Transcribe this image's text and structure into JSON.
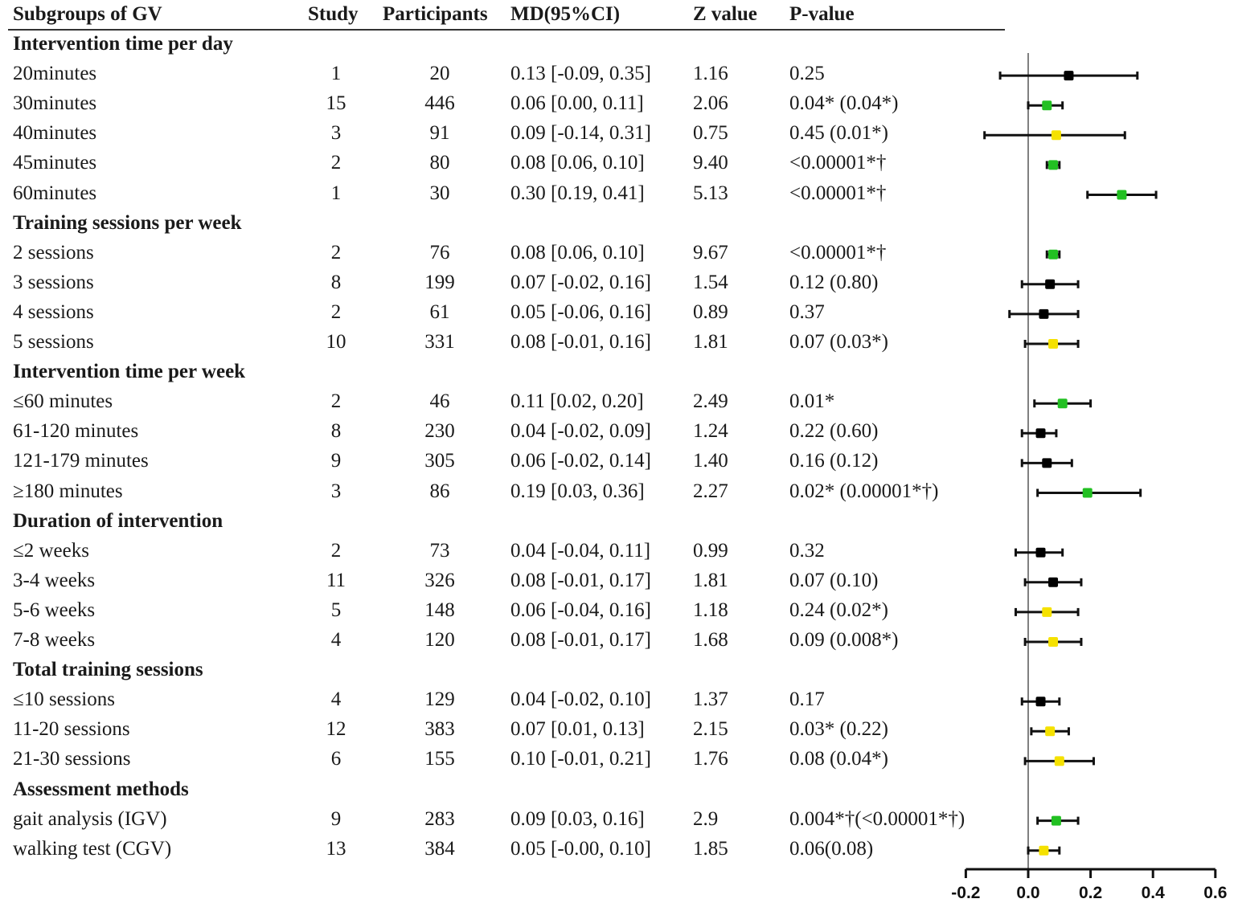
{
  "headers": {
    "subgroup": "Subgroups of GV",
    "study": "Study",
    "participants": "Participants",
    "md": "MD(95%CI)",
    "z": "Z value",
    "p": "P-value"
  },
  "colors": {
    "black": "#000000",
    "green": "#22c022",
    "yellow": "#f5e100",
    "axis": "#808080"
  },
  "groups": [
    {
      "title": "Intervention time per day",
      "rows": [
        {
          "label": "20minutes",
          "study": "1",
          "n": "20",
          "md": "0.13 [-0.09, 0.35]",
          "z": "1.16",
          "p": "0.25",
          "est": 0.13,
          "lo": -0.09,
          "hi": 0.35,
          "color": "black"
        },
        {
          "label": "30minutes",
          "study": "15",
          "n": "446",
          "md": "0.06 [0.00, 0.11]",
          "z": "2.06",
          "p": "0.04* (0.04*)",
          "est": 0.06,
          "lo": 0.0,
          "hi": 0.11,
          "color": "green"
        },
        {
          "label": "40minutes",
          "study": "3",
          "n": "91",
          "md": "0.09 [-0.14, 0.31]",
          "z": "0.75",
          "p": "0.45 (0.01*)",
          "est": 0.09,
          "lo": -0.14,
          "hi": 0.31,
          "color": "yellow"
        },
        {
          "label": "45minutes",
          "study": "2",
          "n": "80",
          "md": "0.08 [0.06, 0.10]",
          "z": "9.40",
          "p": "<0.00001*†",
          "est": 0.08,
          "lo": 0.06,
          "hi": 0.1,
          "color": "green"
        },
        {
          "label": "60minutes",
          "study": "1",
          "n": "30",
          "md": "0.30 [0.19, 0.41]",
          "z": "5.13",
          "p": "<0.00001*†",
          "est": 0.3,
          "lo": 0.19,
          "hi": 0.41,
          "color": "green"
        }
      ]
    },
    {
      "title": "Training sessions per week",
      "rows": [
        {
          "label": "2 sessions",
          "study": "2",
          "n": "76",
          "md": "0.08 [0.06, 0.10]",
          "z": "9.67",
          "p": "<0.00001*†",
          "est": 0.08,
          "lo": 0.06,
          "hi": 0.1,
          "color": "green"
        },
        {
          "label": "3 sessions",
          "study": "8",
          "n": "199",
          "md": "0.07 [-0.02, 0.16]",
          "z": "1.54",
          "p": "0.12 (0.80)",
          "est": 0.07,
          "lo": -0.02,
          "hi": 0.16,
          "color": "black"
        },
        {
          "label": "4 sessions",
          "study": "2",
          "n": "61",
          "md": "0.05 [-0.06, 0.16]",
          "z": "0.89",
          "p": "0.37",
          "est": 0.05,
          "lo": -0.06,
          "hi": 0.16,
          "color": "black"
        },
        {
          "label": "5 sessions",
          "study": "10",
          "n": "331",
          "md": "0.08 [-0.01, 0.16]",
          "z": "1.81",
          "p": "0.07 (0.03*)",
          "est": 0.08,
          "lo": -0.01,
          "hi": 0.16,
          "color": "yellow"
        }
      ]
    },
    {
      "title": "Intervention time per week",
      "rows": [
        {
          "label": "≤60 minutes",
          "study": "2",
          "n": "46",
          "md": "0.11 [0.02, 0.20]",
          "z": "2.49",
          "p": "0.01*",
          "est": 0.11,
          "lo": 0.02,
          "hi": 0.2,
          "color": "green"
        },
        {
          "label": "61-120 minutes",
          "study": "8",
          "n": "230",
          "md": "0.04 [-0.02, 0.09]",
          "z": "1.24",
          "p": "0.22 (0.60)",
          "est": 0.04,
          "lo": -0.02,
          "hi": 0.09,
          "color": "black"
        },
        {
          "label": "121-179 minutes",
          "study": "9",
          "n": "305",
          "md": "0.06 [-0.02, 0.14]",
          "z": "1.40",
          "p": "0.16 (0.12)",
          "est": 0.06,
          "lo": -0.02,
          "hi": 0.14,
          "color": "black"
        },
        {
          "label": "≥180 minutes",
          "study": "3",
          "n": "86",
          "md": "0.19 [0.03, 0.36]",
          "z": "2.27",
          "p": "0.02* (0.00001*†)",
          "est": 0.19,
          "lo": 0.03,
          "hi": 0.36,
          "color": "green"
        }
      ]
    },
    {
      "title": "Duration of intervention",
      "rows": [
        {
          "label": "≤2 weeks",
          "study": "2",
          "n": "73",
          "md": "0.04 [-0.04, 0.11]",
          "z": "0.99",
          "p": "0.32",
          "est": 0.04,
          "lo": -0.04,
          "hi": 0.11,
          "color": "black"
        },
        {
          "label": "3-4 weeks",
          "study": "11",
          "n": "326",
          "md": "0.08 [-0.01, 0.17]",
          "z": "1.81",
          "p": "0.07 (0.10)",
          "est": 0.08,
          "lo": -0.01,
          "hi": 0.17,
          "color": "black"
        },
        {
          "label": "5-6 weeks",
          "study": "5",
          "n": "148",
          "md": "0.06 [-0.04, 0.16]",
          "z": "1.18",
          "p": "0.24 (0.02*)",
          "est": 0.06,
          "lo": -0.04,
          "hi": 0.16,
          "color": "yellow"
        },
        {
          "label": "7-8 weeks",
          "study": "4",
          "n": "120",
          "md": "0.08 [-0.01, 0.17]",
          "z": "1.68",
          "p": "0.09 (0.008*)",
          "est": 0.08,
          "lo": -0.01,
          "hi": 0.17,
          "color": "yellow"
        }
      ]
    },
    {
      "title": "Total training sessions",
      "rows": [
        {
          "label": "≤10 sessions",
          "study": "4",
          "n": "129",
          "md": "0.04 [-0.02, 0.10]",
          "z": "1.37",
          "p": "0.17",
          "est": 0.04,
          "lo": -0.02,
          "hi": 0.1,
          "color": "black"
        },
        {
          "label": "11-20 sessions",
          "study": "12",
          "n": "383",
          "md": "0.07 [0.01, 0.13]",
          "z": "2.15",
          "p": "0.03* (0.22)",
          "est": 0.07,
          "lo": 0.01,
          "hi": 0.13,
          "color": "yellow"
        },
        {
          "label": "21-30 sessions",
          "study": "6",
          "n": "155",
          "md": "0.10 [-0.01, 0.21]",
          "z": "1.76",
          "p": "0.08 (0.04*)",
          "est": 0.1,
          "lo": -0.01,
          "hi": 0.21,
          "color": "yellow"
        }
      ]
    },
    {
      "title": "Assessment methods",
      "rows": [
        {
          "label": "gait analysis (IGV)",
          "study": "9",
          "n": "283",
          "md": "0.09 [0.03, 0.16]",
          "z": "2.9",
          "p": "0.004*†(<0.00001*†)",
          "est": 0.09,
          "lo": 0.03,
          "hi": 0.16,
          "color": "green"
        },
        {
          "label": "walking test (CGV)",
          "study": "13",
          "n": "384",
          "md": "0.05 [-0.00, 0.10]",
          "z": "1.85",
          "p": "0.06(0.08)",
          "est": 0.05,
          "lo": 0.0,
          "hi": 0.1,
          "color": "yellow"
        }
      ]
    }
  ],
  "chart_data": {
    "type": "scatter",
    "subtype": "forest",
    "title": "",
    "xlabel": "",
    "ylabel": "",
    "xlim": [
      -0.2,
      0.6
    ],
    "xticks": [
      "-0.2",
      "0.0",
      "0.2",
      "0.4",
      "0.6"
    ],
    "reference_line": 0.0,
    "grid": false,
    "categories": [
      "20minutes",
      "30minutes",
      "40minutes",
      "45minutes",
      "60minutes",
      "2 sessions",
      "3 sessions",
      "4 sessions",
      "5 sessions",
      "≤60 minutes",
      "61-120 minutes",
      "121-179 minutes",
      "≥180 minutes",
      "≤2 weeks",
      "3-4 weeks",
      "5-6 weeks",
      "7-8 weeks",
      "≤10 sessions",
      "11-20 sessions",
      "21-30 sessions",
      "gait analysis (IGV)",
      "walking test (CGV)"
    ],
    "series": [
      {
        "name": "MD",
        "values": [
          0.13,
          0.06,
          0.09,
          0.08,
          0.3,
          0.08,
          0.07,
          0.05,
          0.08,
          0.11,
          0.04,
          0.06,
          0.19,
          0.04,
          0.08,
          0.06,
          0.08,
          0.04,
          0.07,
          0.1,
          0.09,
          0.05
        ]
      },
      {
        "name": "CI lower",
        "values": [
          -0.09,
          0.0,
          -0.14,
          0.06,
          0.19,
          0.06,
          -0.02,
          -0.06,
          -0.01,
          0.02,
          -0.02,
          -0.02,
          0.03,
          -0.04,
          -0.01,
          -0.04,
          -0.01,
          -0.02,
          0.01,
          -0.01,
          0.03,
          0.0
        ]
      },
      {
        "name": "CI upper",
        "values": [
          0.35,
          0.11,
          0.31,
          0.1,
          0.41,
          0.1,
          0.16,
          0.16,
          0.16,
          0.2,
          0.09,
          0.14,
          0.36,
          0.11,
          0.17,
          0.16,
          0.17,
          0.1,
          0.13,
          0.21,
          0.16,
          0.1
        ]
      }
    ],
    "marker_colors": [
      "black",
      "green",
      "yellow",
      "green",
      "green",
      "green",
      "black",
      "black",
      "yellow",
      "green",
      "black",
      "black",
      "green",
      "black",
      "black",
      "yellow",
      "yellow",
      "black",
      "yellow",
      "yellow",
      "green",
      "yellow"
    ]
  }
}
